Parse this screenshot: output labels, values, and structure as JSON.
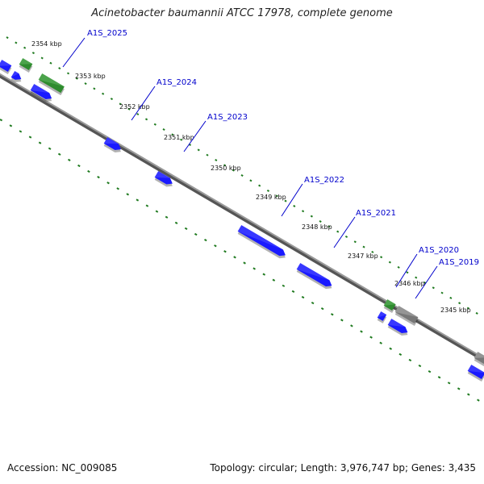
{
  "title": "Acinetobacter baumannii ATCC 17978, complete genome",
  "accession": "Accession: NC_009085",
  "summary": "Topology: circular; Length: 3,976,747 bp; Genes: 3,435",
  "ticks": [
    {
      "label": "2354 kbp"
    },
    {
      "label": "2353 kbp"
    },
    {
      "label": "2352 kbp"
    },
    {
      "label": "2351 kbp"
    },
    {
      "label": "2350 kbp"
    },
    {
      "label": "2349 kbp"
    },
    {
      "label": "2348 kbp"
    },
    {
      "label": "2347 kbp"
    },
    {
      "label": "2346 kbp"
    },
    {
      "label": "2345 kbp"
    }
  ],
  "genes": [
    {
      "label": "A1S_2025"
    },
    {
      "label": "A1S_2024"
    },
    {
      "label": "A1S_2023"
    },
    {
      "label": "A1S_2022"
    },
    {
      "label": "A1S_2021"
    },
    {
      "label": "A1S_2020"
    },
    {
      "label": "A1S_2019"
    }
  ],
  "colors": {
    "backbone": "#777777",
    "forward": "#1a1aff",
    "forward_top": "#4d4dff",
    "rna": "#2e8b2e",
    "rna_top": "#5fb45f",
    "pseudo": "#777777",
    "pseudo_top": "#aaaaaa",
    "tick": "#1f7a1f",
    "label": "#0000cc"
  }
}
